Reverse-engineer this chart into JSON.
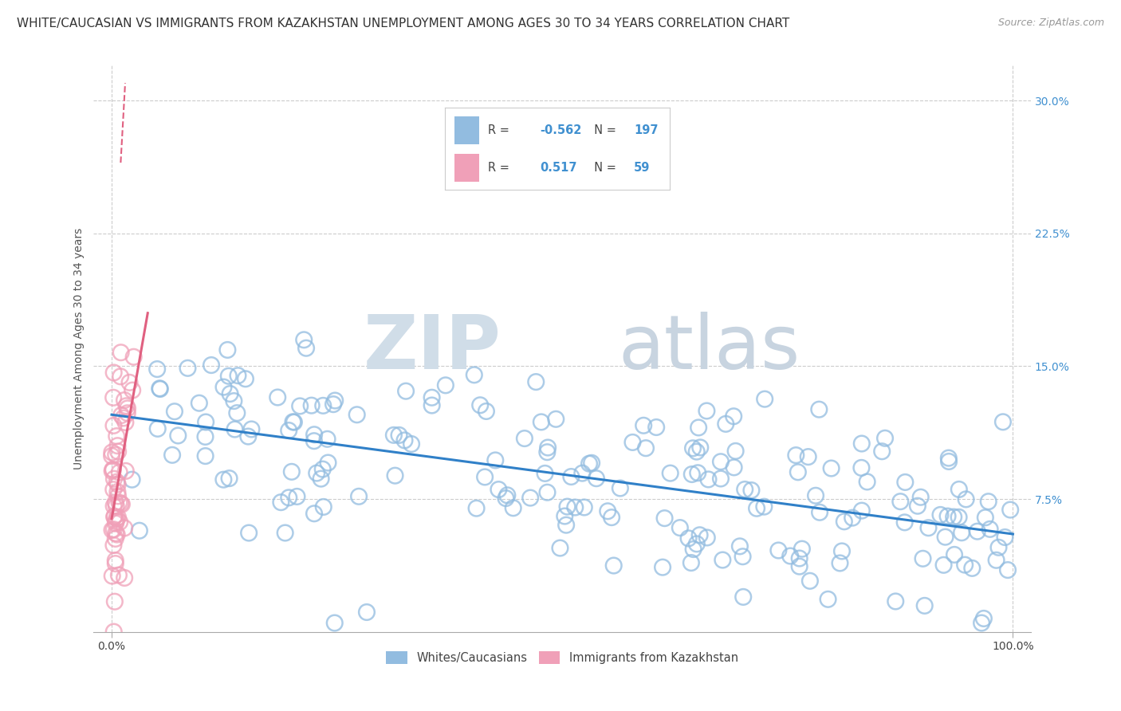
{
  "title": "WHITE/CAUCASIAN VS IMMIGRANTS FROM KAZAKHSTAN UNEMPLOYMENT AMONG AGES 30 TO 34 YEARS CORRELATION CHART",
  "source": "Source: ZipAtlas.com",
  "ylabel": "Unemployment Among Ages 30 to 34 years",
  "xlim": [
    -0.02,
    1.02
  ],
  "ylim": [
    0,
    0.32
  ],
  "xtick_labels": [
    "0.0%",
    "100.0%"
  ],
  "xtick_positions": [
    0.0,
    1.0
  ],
  "ytick_labels": [
    "7.5%",
    "15.0%",
    "22.5%",
    "30.0%"
  ],
  "ytick_positions": [
    0.075,
    0.15,
    0.225,
    0.3
  ],
  "grid_color": "#cccccc",
  "background_color": "#ffffff",
  "blue_scatter_color": "#92bce0",
  "pink_scatter_color": "#f0a0b8",
  "blue_line_color": "#3080c8",
  "pink_line_color": "#e06080",
  "legend_blue_label": "Whites/Caucasians",
  "legend_pink_label": "Immigrants from Kazakhstan",
  "R_blue": -0.562,
  "N_blue": 197,
  "R_pink": 0.517,
  "N_pink": 59,
  "watermark_zip": "ZIP",
  "watermark_atlas": "atlas",
  "title_fontsize": 11,
  "source_fontsize": 9,
  "axis_label_fontsize": 10,
  "tick_fontsize": 10,
  "legend_fontsize": 11,
  "blue_seed": 12,
  "pink_seed": 5,
  "n_blue_points": 197,
  "n_pink_points": 59
}
